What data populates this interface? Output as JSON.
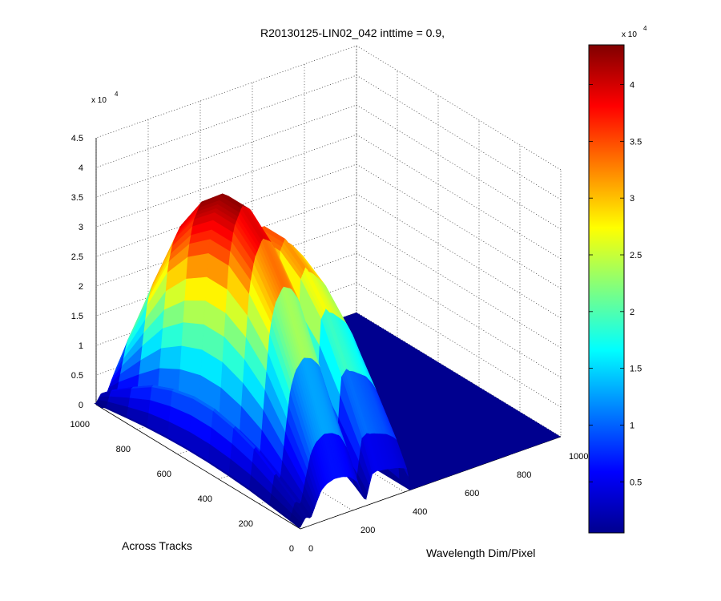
{
  "chart_data": {
    "type": "surface",
    "title": "R20130125-LIN02_042 inttime = 0.9,",
    "xlabel": "Wavelength Dim/Pixel",
    "ylabel": "Across Tracks",
    "zlabel": "",
    "z_exponent_label": "x 10",
    "z_exponent_power": "4",
    "xlim": [
      0,
      1000
    ],
    "ylim": [
      0,
      1000
    ],
    "zlim": [
      0,
      45000
    ],
    "x_ticks": [
      "0",
      "200",
      "400",
      "600",
      "800",
      "1000"
    ],
    "y_ticks": [
      "0",
      "200",
      "400",
      "600",
      "800",
      "1000"
    ],
    "z_ticks": [
      "0",
      "0.5",
      "1",
      "1.5",
      "2",
      "2.5",
      "3",
      "3.5",
      "4",
      "4.5"
    ],
    "grid": true,
    "colormap": "jet",
    "colorbar": {
      "range": [
        500,
        43500
      ],
      "ticks": [
        "0.5",
        "1",
        "1.5",
        "2",
        "2.5",
        "3",
        "3.5",
        "4"
      ],
      "exponent_label": "x 10",
      "exponent_power": "4"
    },
    "signal_region": {
      "x_range": [
        0,
        420
      ],
      "y_range": [
        0,
        1000
      ]
    },
    "profile_across_track": {
      "y": [
        0,
        50,
        150,
        250,
        350,
        450,
        550,
        650,
        750,
        850,
        950,
        1000
      ],
      "relative_level": [
        0.15,
        0.3,
        0.55,
        0.78,
        0.92,
        1.0,
        1.0,
        0.92,
        0.78,
        0.55,
        0.3,
        0.15
      ]
    },
    "spectrum_peak_along_wavelength": {
      "x": [
        0,
        20,
        40,
        60,
        80,
        100,
        130,
        160,
        190,
        220,
        250,
        275,
        295,
        305,
        320,
        345,
        370,
        395,
        410,
        420
      ],
      "z": [
        2000,
        11000,
        8000,
        22000,
        35000,
        40000,
        43000,
        42000,
        39000,
        30000,
        5000,
        33000,
        35000,
        34000,
        33500,
        32000,
        30500,
        27500,
        25000,
        3000
      ]
    }
  }
}
